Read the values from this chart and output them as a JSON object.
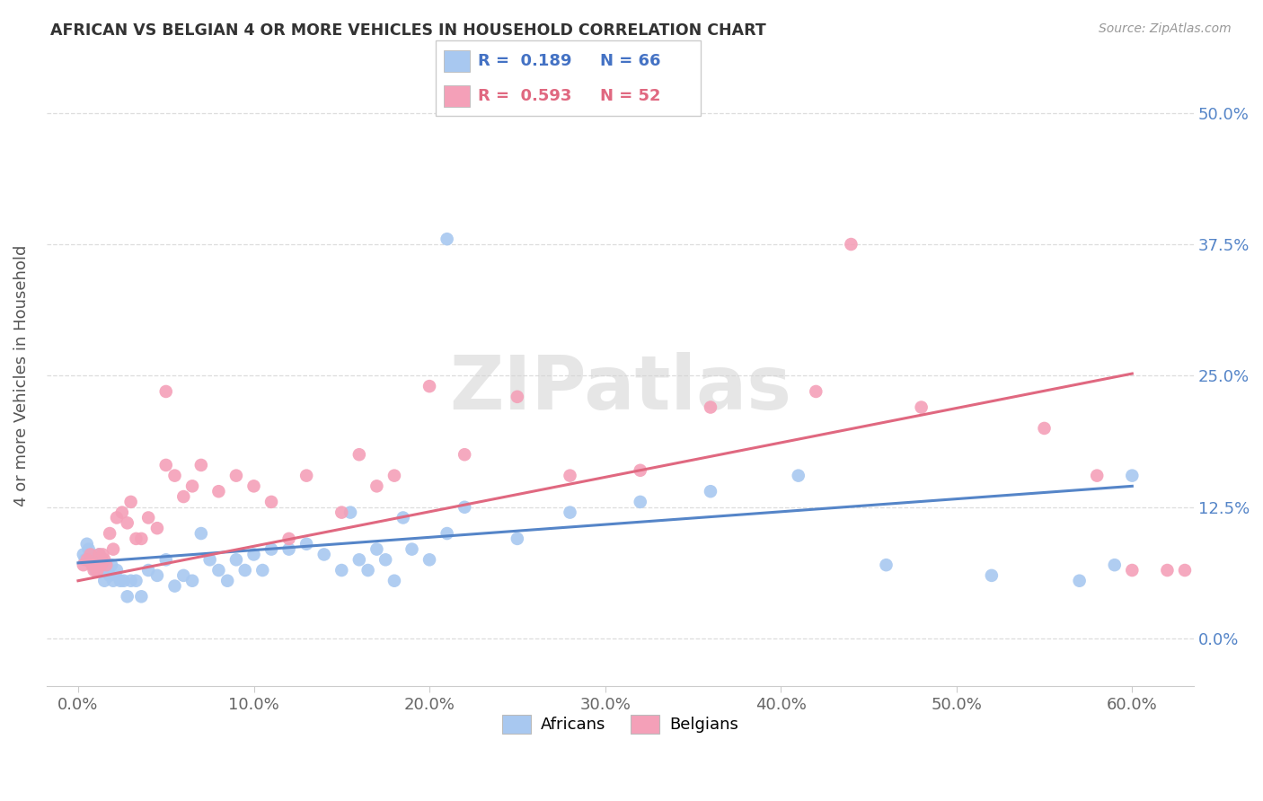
{
  "title": "AFRICAN VS BELGIAN 4 OR MORE VEHICLES IN HOUSEHOLD CORRELATION CHART",
  "source": "Source: ZipAtlas.com",
  "ylabel": "4 or more Vehicles in Household",
  "legend_labels": [
    "Africans",
    "Belgians"
  ],
  "african_R": "0.189",
  "african_N": "66",
  "belgian_R": "0.593",
  "belgian_N": "52",
  "african_color": "#A8C8F0",
  "belgian_color": "#F4A0B8",
  "african_line_color": "#5585C8",
  "belgian_line_color": "#E06880",
  "xtick_vals": [
    0.0,
    0.1,
    0.2,
    0.3,
    0.4,
    0.5,
    0.6
  ],
  "xtick_labels": [
    "0.0%",
    "10.0%",
    "20.0%",
    "30.0%",
    "40.0%",
    "50.0%",
    "60.0%"
  ],
  "ytick_vals": [
    0.0,
    0.125,
    0.25,
    0.375,
    0.5
  ],
  "ytick_labels": [
    "0.0%",
    "12.5%",
    "25.0%",
    "37.5%",
    "50.0%"
  ],
  "xlim": [
    -0.018,
    0.635
  ],
  "ylim": [
    -0.045,
    0.545
  ],
  "african_line_x0": 0.0,
  "african_line_y0": 0.072,
  "african_line_x1": 0.6,
  "african_line_y1": 0.145,
  "belgian_line_x0": 0.0,
  "belgian_line_y0": 0.055,
  "belgian_line_x1": 0.6,
  "belgian_line_y1": 0.252,
  "african_x": [
    0.003,
    0.004,
    0.005,
    0.006,
    0.007,
    0.008,
    0.009,
    0.01,
    0.011,
    0.012,
    0.013,
    0.014,
    0.015,
    0.016,
    0.017,
    0.018,
    0.019,
    0.02,
    0.022,
    0.024,
    0.026,
    0.028,
    0.03,
    0.033,
    0.036,
    0.04,
    0.045,
    0.05,
    0.055,
    0.06,
    0.065,
    0.07,
    0.075,
    0.08,
    0.085,
    0.09,
    0.095,
    0.1,
    0.105,
    0.11,
    0.12,
    0.13,
    0.14,
    0.15,
    0.155,
    0.16,
    0.165,
    0.17,
    0.175,
    0.18,
    0.185,
    0.19,
    0.2,
    0.21,
    0.22,
    0.25,
    0.28,
    0.32,
    0.36,
    0.41,
    0.46,
    0.52,
    0.57,
    0.59,
    0.6,
    0.21
  ],
  "african_y": [
    0.08,
    0.075,
    0.09,
    0.085,
    0.08,
    0.075,
    0.07,
    0.065,
    0.075,
    0.08,
    0.075,
    0.065,
    0.055,
    0.07,
    0.065,
    0.06,
    0.07,
    0.055,
    0.065,
    0.055,
    0.055,
    0.04,
    0.055,
    0.055,
    0.04,
    0.065,
    0.06,
    0.075,
    0.05,
    0.06,
    0.055,
    0.1,
    0.075,
    0.065,
    0.055,
    0.075,
    0.065,
    0.08,
    0.065,
    0.085,
    0.085,
    0.09,
    0.08,
    0.065,
    0.12,
    0.075,
    0.065,
    0.085,
    0.075,
    0.055,
    0.115,
    0.085,
    0.075,
    0.1,
    0.125,
    0.095,
    0.12,
    0.13,
    0.14,
    0.155,
    0.07,
    0.06,
    0.055,
    0.07,
    0.155,
    0.38
  ],
  "belgian_x": [
    0.003,
    0.005,
    0.007,
    0.008,
    0.009,
    0.01,
    0.011,
    0.012,
    0.013,
    0.014,
    0.015,
    0.016,
    0.018,
    0.02,
    0.022,
    0.025,
    0.028,
    0.03,
    0.033,
    0.036,
    0.04,
    0.045,
    0.05,
    0.055,
    0.06,
    0.065,
    0.07,
    0.08,
    0.09,
    0.1,
    0.11,
    0.12,
    0.13,
    0.15,
    0.16,
    0.17,
    0.18,
    0.2,
    0.22,
    0.25,
    0.28,
    0.32,
    0.36,
    0.42,
    0.48,
    0.55,
    0.58,
    0.6,
    0.62,
    0.63,
    0.44,
    0.05
  ],
  "belgian_y": [
    0.07,
    0.075,
    0.08,
    0.07,
    0.065,
    0.07,
    0.065,
    0.08,
    0.07,
    0.08,
    0.075,
    0.07,
    0.1,
    0.085,
    0.115,
    0.12,
    0.11,
    0.13,
    0.095,
    0.095,
    0.115,
    0.105,
    0.165,
    0.155,
    0.135,
    0.145,
    0.165,
    0.14,
    0.155,
    0.145,
    0.13,
    0.095,
    0.155,
    0.12,
    0.175,
    0.145,
    0.155,
    0.24,
    0.175,
    0.23,
    0.155,
    0.16,
    0.22,
    0.235,
    0.22,
    0.2,
    0.155,
    0.065,
    0.065,
    0.065,
    0.375,
    0.235
  ]
}
